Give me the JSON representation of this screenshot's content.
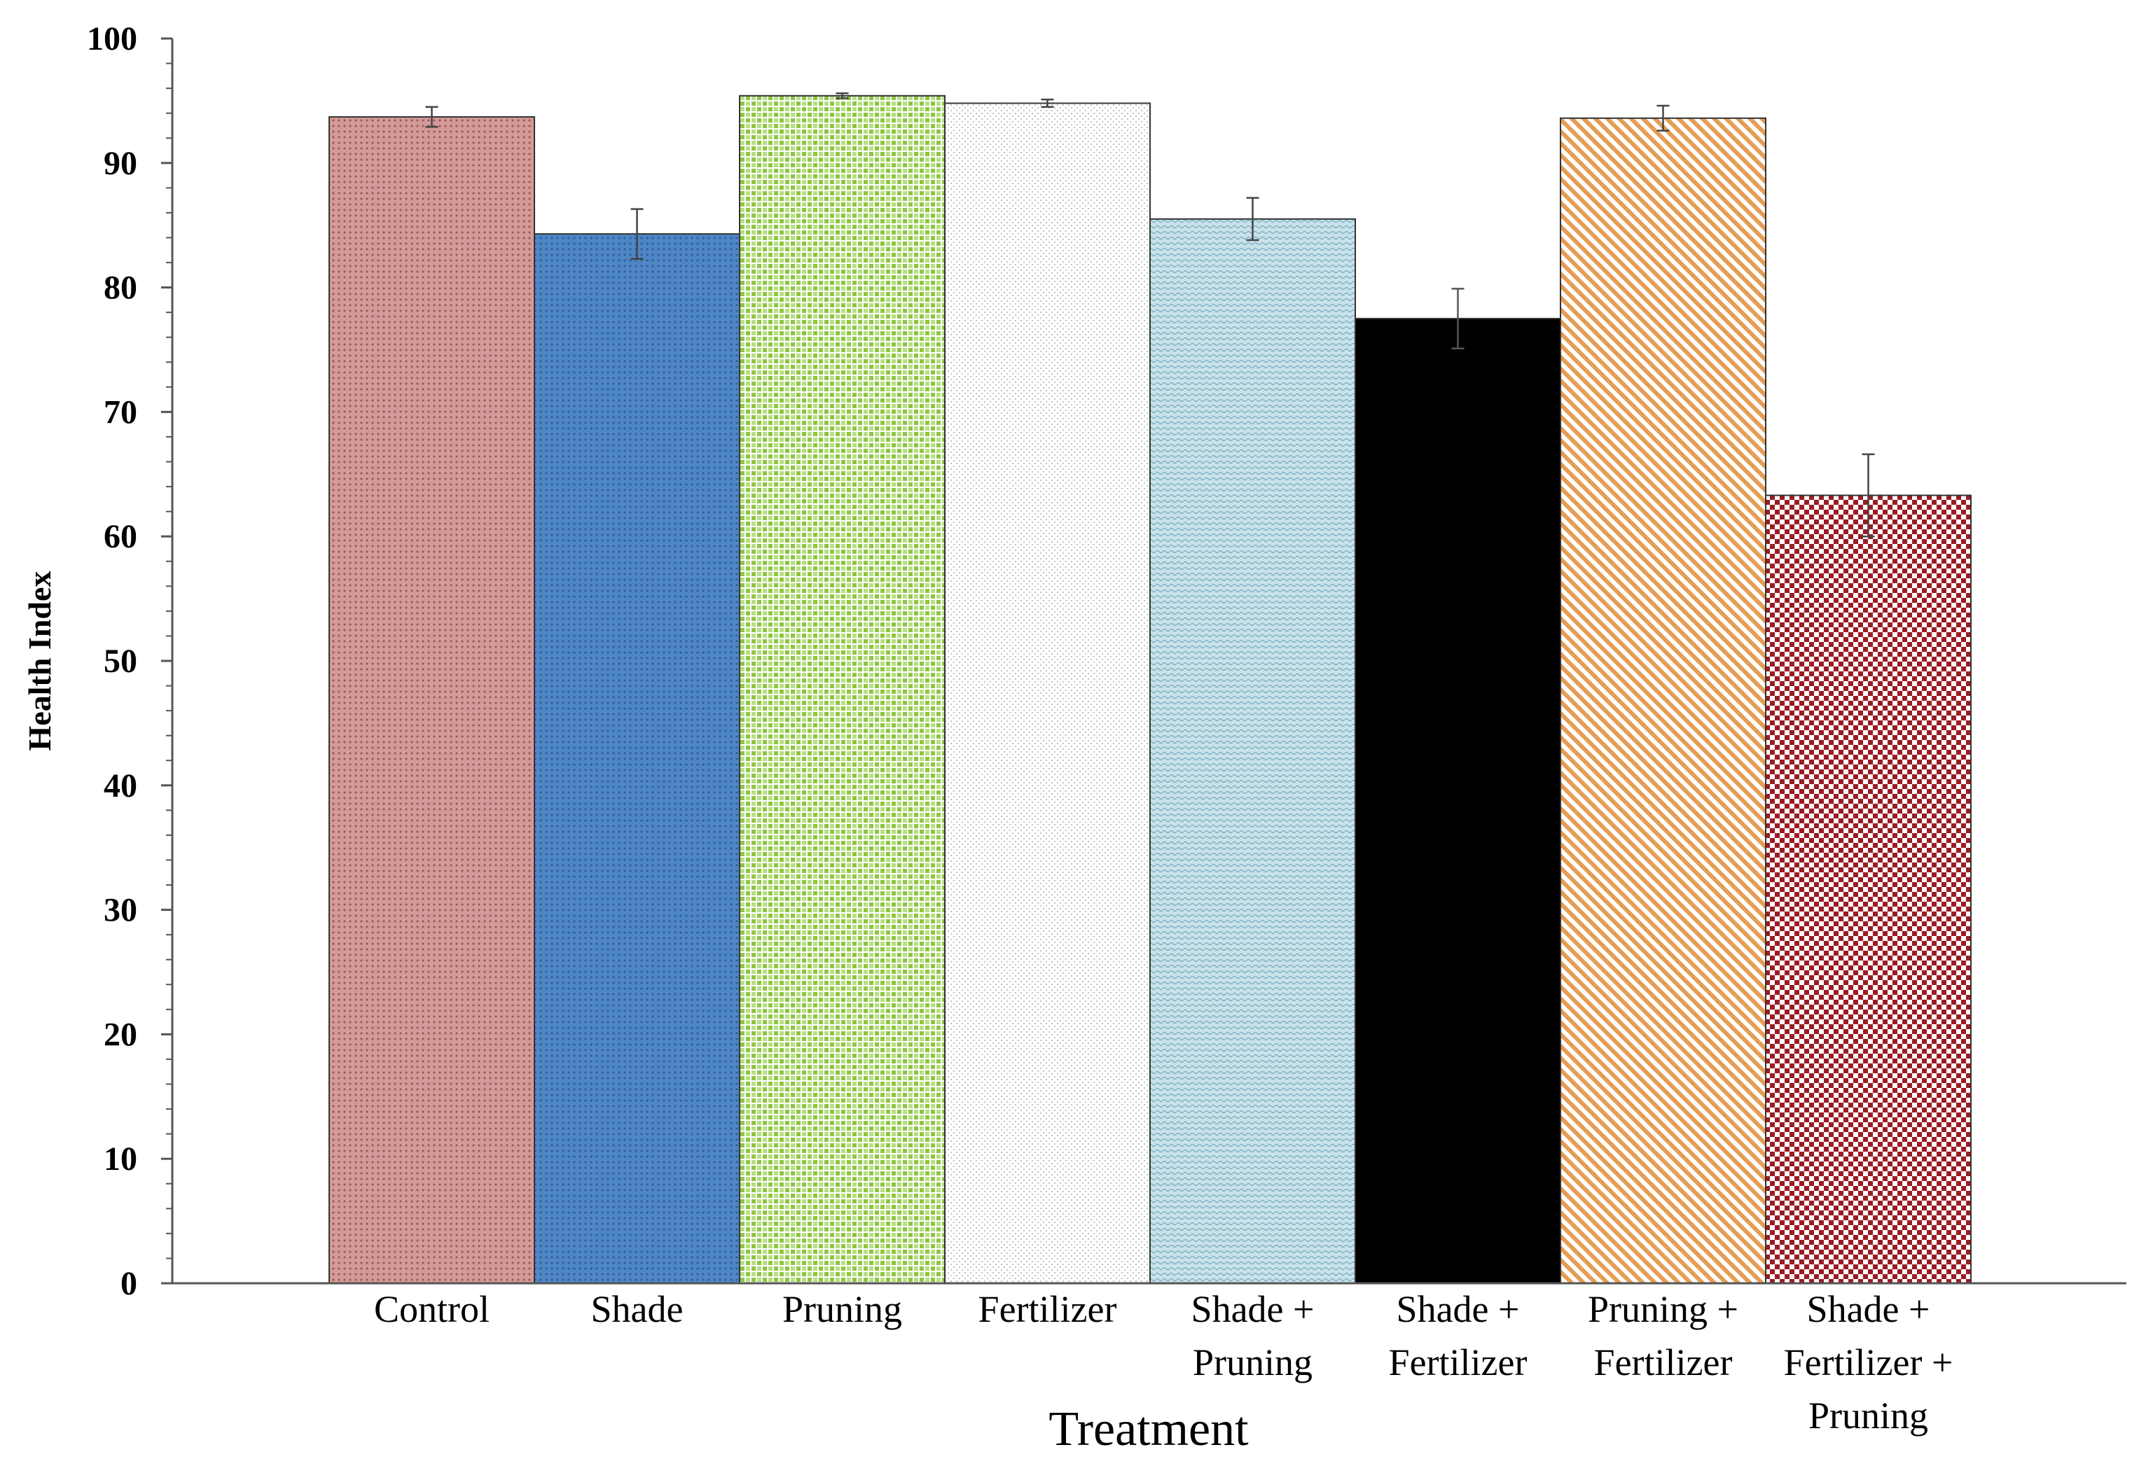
{
  "chart_data": {
    "type": "bar",
    "title": "",
    "xlabel": "Treatment",
    "ylabel": "Health Index",
    "ylim": [
      0,
      100
    ],
    "yticks": [
      "0",
      "10",
      "20",
      "30",
      "40",
      "50",
      "60",
      "70",
      "80",
      "90",
      "100"
    ],
    "grid": false,
    "categories": [
      [
        "Control"
      ],
      [
        "Shade"
      ],
      [
        "Pruning"
      ],
      [
        "Fertilizer"
      ],
      [
        "Shade +",
        "Pruning"
      ],
      [
        "Shade +",
        "Fertilizer"
      ],
      [
        "Pruning +",
        "Fertilizer"
      ],
      [
        "Shade +",
        "Fertilizer +",
        "Pruning"
      ]
    ],
    "values": [
      93.7,
      84.3,
      95.4,
      94.8,
      85.5,
      77.5,
      93.6,
      63.3
    ],
    "errors": [
      0.8,
      2.0,
      0.2,
      0.3,
      1.7,
      2.4,
      1.0,
      3.3
    ],
    "colors": [
      "#c98483",
      "#4a7fc0",
      "#8dc63f",
      "#d8d8d8",
      "#a9cfd9",
      "#000000",
      "#e9a25d",
      "#9b1b24"
    ]
  }
}
